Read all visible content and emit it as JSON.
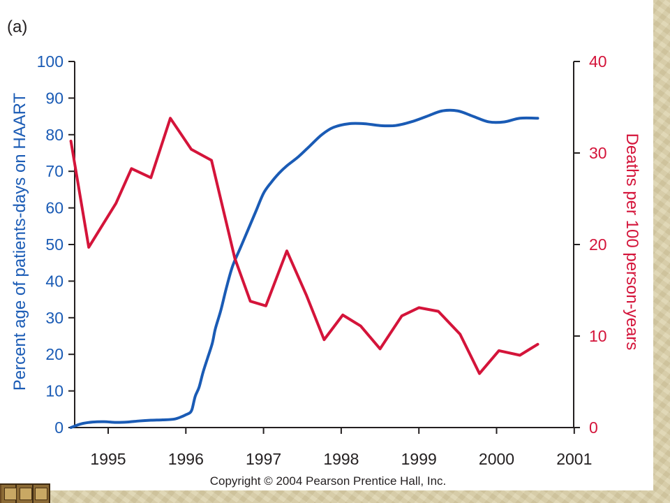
{
  "panel_label": "(a)",
  "copyright": "Copyright © 2004 Pearson Prentice Hall, Inc.",
  "colors": {
    "blue": "#1a5bb5",
    "red": "#d4143a",
    "axis": "#231f20"
  },
  "chart_data": {
    "type": "line",
    "title": "",
    "xlabel": "",
    "x_ticks": [
      "1995",
      "1996",
      "1997",
      "1998",
      "1999",
      "2000",
      "2001"
    ],
    "xlim": [
      1994.5,
      2001.0
    ],
    "y_left": {
      "label": "Percent age of patients-days on HAART",
      "lim": [
        0,
        100
      ],
      "ticks": [
        "0",
        "10",
        "20",
        "30",
        "40",
        "50",
        "60",
        "70",
        "80",
        "90",
        "100"
      ]
    },
    "y_right": {
      "label": "Deaths per 100 person-years",
      "lim": [
        0,
        40
      ],
      "ticks": [
        "0",
        "10",
        "20",
        "30",
        "40"
      ]
    },
    "series": [
      {
        "axis": "left",
        "color": "#1a5bb5",
        "smooth": true,
        "points": [
          [
            1994.52,
            0
          ],
          [
            1994.65,
            1.0
          ],
          [
            1994.8,
            1.5
          ],
          [
            1994.95,
            1.6
          ],
          [
            1995.1,
            1.4
          ],
          [
            1995.25,
            1.5
          ],
          [
            1995.4,
            1.8
          ],
          [
            1995.55,
            2.0
          ],
          [
            1995.7,
            2.1
          ],
          [
            1995.85,
            2.3
          ],
          [
            1995.95,
            3.0
          ],
          [
            1996.0,
            3.5
          ],
          [
            1996.05,
            4.0
          ],
          [
            1996.08,
            5.0
          ],
          [
            1996.12,
            8.5
          ],
          [
            1996.17,
            11
          ],
          [
            1996.22,
            15
          ],
          [
            1996.28,
            19
          ],
          [
            1996.34,
            23
          ],
          [
            1996.38,
            27
          ],
          [
            1996.45,
            32
          ],
          [
            1996.52,
            38
          ],
          [
            1996.6,
            44
          ],
          [
            1996.7,
            49
          ],
          [
            1996.8,
            54
          ],
          [
            1996.9,
            59
          ],
          [
            1997.0,
            64
          ],
          [
            1997.1,
            67
          ],
          [
            1997.2,
            69.5
          ],
          [
            1997.3,
            71.5
          ],
          [
            1997.45,
            74
          ],
          [
            1997.6,
            77
          ],
          [
            1997.75,
            80
          ],
          [
            1997.9,
            82
          ],
          [
            1998.1,
            83
          ],
          [
            1998.3,
            83
          ],
          [
            1998.5,
            82.5
          ],
          [
            1998.7,
            82.5
          ],
          [
            1998.9,
            83.5
          ],
          [
            1999.1,
            85
          ],
          [
            1999.3,
            86.5
          ],
          [
            1999.5,
            86.5
          ],
          [
            1999.7,
            85
          ],
          [
            1999.9,
            83.5
          ],
          [
            2000.1,
            83.5
          ],
          [
            2000.3,
            84.5
          ],
          [
            2000.53,
            84.5
          ]
        ]
      },
      {
        "axis": "right",
        "color": "#d4143a",
        "smooth": false,
        "points": [
          [
            1994.52,
            31.3
          ],
          [
            1994.75,
            19.7
          ],
          [
            1995.1,
            24.5
          ],
          [
            1995.3,
            28.3
          ],
          [
            1995.55,
            27.3
          ],
          [
            1995.8,
            33.8
          ],
          [
            1996.07,
            30.4
          ],
          [
            1996.33,
            29.2
          ],
          [
            1996.63,
            18.5
          ],
          [
            1996.83,
            13.8
          ],
          [
            1997.03,
            13.3
          ],
          [
            1997.3,
            19.3
          ],
          [
            1997.55,
            14.5
          ],
          [
            1997.78,
            9.6
          ],
          [
            1998.02,
            12.3
          ],
          [
            1998.25,
            11.1
          ],
          [
            1998.5,
            8.6
          ],
          [
            1998.78,
            12.2
          ],
          [
            1999.0,
            13.1
          ],
          [
            1999.25,
            12.7
          ],
          [
            1999.53,
            10.2
          ],
          [
            1999.78,
            5.9
          ],
          [
            2000.03,
            8.4
          ],
          [
            2000.3,
            7.9
          ],
          [
            2000.53,
            9.1
          ]
        ]
      }
    ]
  }
}
